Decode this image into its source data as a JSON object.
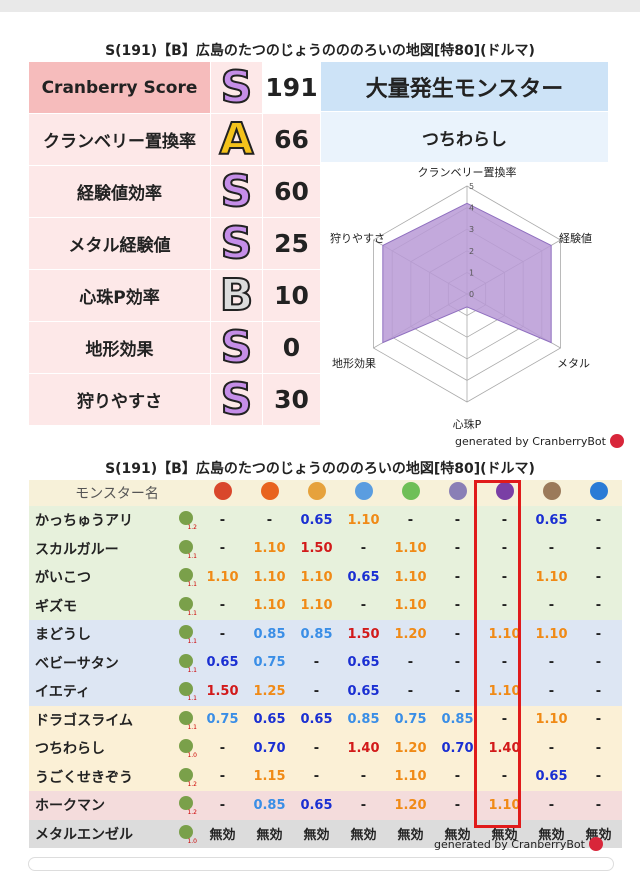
{
  "title": "S(191)【B】広島のたつのじょうのののろいの地図[特80](ドルマ)",
  "scores": [
    {
      "label": "Cranberry Score",
      "grade": "S",
      "value": "191"
    },
    {
      "label": "クランベリー置換率",
      "grade": "A",
      "value": "66"
    },
    {
      "label": "経験値効率",
      "grade": "S",
      "value": "60"
    },
    {
      "label": "メタル経験値",
      "grade": "S",
      "value": "25"
    },
    {
      "label": "心珠P効率",
      "grade": "B",
      "value": "10"
    },
    {
      "label": "地形効果",
      "grade": "S",
      "value": "0"
    },
    {
      "label": "狩りやすさ",
      "grade": "S",
      "value": "30"
    }
  ],
  "outbreak": {
    "header": "大量発生モンスター",
    "name": "つちわらし"
  },
  "radar": {
    "axes": [
      "クランベリー置換率",
      "経験値",
      "メタル",
      "心珠P",
      "地形効果",
      "狩りやすさ"
    ],
    "ticks": [
      "0",
      "1",
      "2",
      "3",
      "4",
      "5"
    ],
    "values": [
      4.2,
      4.5,
      4.5,
      0.6,
      4.5,
      4.5
    ],
    "max": 5,
    "fill_color": "#b89ad6"
  },
  "generated_by": "generated by CranberryBot",
  "table": {
    "header_label": "モンスター名",
    "elements": [
      "fire",
      "flame",
      "explosion",
      "ice",
      "wind",
      "thunder",
      "dorma",
      "earth",
      "water"
    ],
    "element_colors": [
      "#d9472b",
      "#e8631e",
      "#e6a23c",
      "#5a9de0",
      "#6fbf57",
      "#8a7fb6",
      "#7a3fa5",
      "#9b7a5a",
      "#2a7bd6"
    ],
    "rows": [
      {
        "name": "かっちゅうアリ",
        "level": "1.2",
        "bg": "#e7f1dc",
        "cells": [
          "-",
          "-",
          "0.65",
          "1.10",
          "-",
          "-",
          "-",
          "0.65",
          "-"
        ]
      },
      {
        "name": "スカルガルー",
        "level": "1.1",
        "bg": "#e7f1dc",
        "cells": [
          "-",
          "1.10",
          "1.50",
          "-",
          "1.10",
          "-",
          "-",
          "-",
          "-"
        ]
      },
      {
        "name": "がいこつ",
        "level": "1.1",
        "bg": "#e7f1dc",
        "cells": [
          "1.10",
          "1.10",
          "1.10",
          "0.65",
          "1.10",
          "-",
          "-",
          "1.10",
          "-"
        ]
      },
      {
        "name": "ギズモ",
        "level": "1.1",
        "bg": "#e7f1dc",
        "cells": [
          "-",
          "1.10",
          "1.10",
          "-",
          "1.10",
          "-",
          "-",
          "-",
          "-"
        ]
      },
      {
        "name": "まどうし",
        "level": "1.1",
        "bg": "#dde6f3",
        "cells": [
          "-",
          "0.85",
          "0.85",
          "1.50",
          "1.20",
          "-",
          "1.10",
          "1.10",
          "-"
        ]
      },
      {
        "name": "ベビーサタン",
        "level": "1.1",
        "bg": "#dde6f3",
        "cells": [
          "0.65",
          "0.75",
          "-",
          "0.65",
          "-",
          "-",
          "-",
          "-",
          "-"
        ]
      },
      {
        "name": "イエティ",
        "level": "1.1",
        "bg": "#dde6f3",
        "cells": [
          "1.50",
          "1.25",
          "-",
          "0.65",
          "-",
          "-",
          "1.10",
          "-",
          "-"
        ]
      },
      {
        "name": "ドラゴスライム",
        "level": "1.1",
        "bg": "#fbf0d6",
        "cells": [
          "0.75",
          "0.65",
          "0.65",
          "0.85",
          "0.75",
          "0.85",
          "-",
          "1.10",
          "-"
        ]
      },
      {
        "name": "つちわらし",
        "level": "1.0",
        "bg": "#fbf0d6",
        "cells": [
          "-",
          "0.70",
          "-",
          "1.40",
          "1.20",
          "0.70",
          "1.40",
          "-",
          "-"
        ]
      },
      {
        "name": "うごくせきぞう",
        "level": "1.2",
        "bg": "#fbf0d6",
        "cells": [
          "-",
          "1.15",
          "-",
          "-",
          "1.10",
          "-",
          "-",
          "0.65",
          "-"
        ]
      },
      {
        "name": "ホークマン",
        "level": "1.2",
        "bg": "#f4dcdc",
        "cells": [
          "-",
          "0.85",
          "0.65",
          "-",
          "1.20",
          "-",
          "1.10",
          "-",
          "-"
        ]
      },
      {
        "name": "メタルエンゼル",
        "level": "1.0",
        "bg": "#dcdcdc",
        "cells": [
          "無効",
          "無効",
          "無効",
          "無効",
          "無効",
          "無効",
          "無効",
          "無効",
          "無効"
        ]
      }
    ]
  }
}
